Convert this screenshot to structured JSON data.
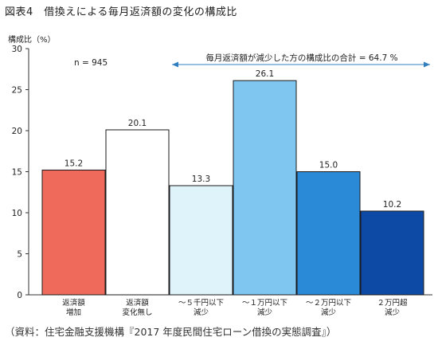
{
  "figure": {
    "title": "図表4　借換えによる毎月返済額の変化の構成比",
    "source": "（資料：住宅金融支援機構『2017 年度民間住宅ローン借換の実態調査』）"
  },
  "chart_data": {
    "type": "bar",
    "ylabel": "構成比（%）",
    "ylim": [
      0,
      30
    ],
    "yticks": [
      0,
      5,
      10,
      15,
      20,
      25,
      30
    ],
    "grid": false,
    "legend": "none",
    "n_label": "n = 945",
    "annotation": "毎月返済額が減少した方の構成比の合計 = 64.7 %",
    "annotation_color": "#2f7fc0",
    "categories": [
      [
        "返済額",
        "増加"
      ],
      [
        "返済額",
        "変化無し"
      ],
      [
        "～５千円以下",
        "減少"
      ],
      [
        "～１万円以下",
        "減少"
      ],
      [
        "～２万円以下",
        "減少"
      ],
      [
        "２万円超",
        "減少"
      ]
    ],
    "values": [
      15.2,
      20.1,
      13.3,
      26.1,
      15.0,
      10.2
    ],
    "value_labels": [
      "15.2",
      "20.1",
      "13.3",
      "26.1",
      "15.0",
      "10.2"
    ],
    "colors": [
      "#ef6a5a",
      "#ffffff",
      "#dff3fb",
      "#7fc6f0",
      "#2a8ad8",
      "#0d4aa6"
    ]
  }
}
